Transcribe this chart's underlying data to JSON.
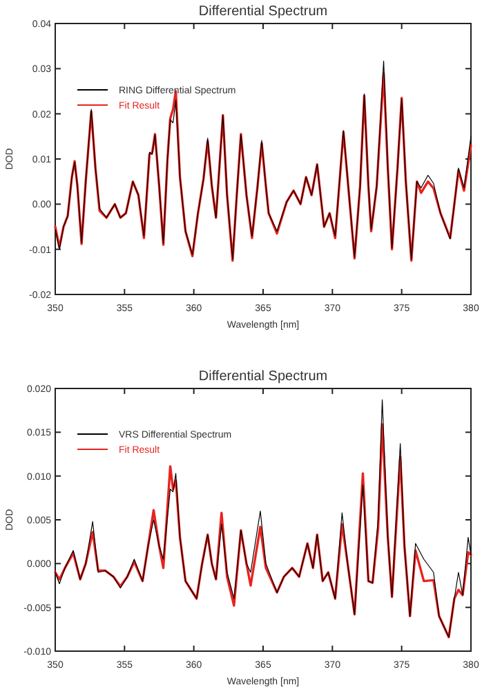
{
  "chart_data": [
    {
      "type": "line",
      "title": "Differential Spectrum",
      "xlabel": "Wavelength [nm]",
      "ylabel": "DOD",
      "xlim": [
        350,
        380
      ],
      "xticks": [
        350,
        355,
        360,
        365,
        370,
        375,
        380
      ],
      "ylim": [
        -0.02,
        0.04
      ],
      "yticks": [
        {
          "value": -0.02,
          "label": "-0.02"
        },
        {
          "value": -0.01,
          "label": "-0.01"
        },
        {
          "value": 0,
          "label": "0.00"
        },
        {
          "value": 0.01,
          "label": "0.01"
        },
        {
          "value": 0.02,
          "label": "0.02"
        },
        {
          "value": 0.03,
          "label": "0.03"
        },
        {
          "value": 0.04,
          "label": "0.04"
        }
      ],
      "grid": false,
      "legend": "top left",
      "marker": "none",
      "line_style": "solid",
      "x": [
        350.0,
        350.3,
        350.6,
        350.9,
        351.2,
        351.4,
        351.6,
        351.9,
        352.2,
        352.6,
        352.9,
        353.2,
        353.7,
        354.3,
        354.7,
        355.1,
        355.6,
        356.0,
        356.4,
        356.8,
        357.0,
        357.2,
        357.5,
        357.8,
        358.1,
        358.3,
        358.5,
        358.7,
        359.0,
        359.4,
        359.9,
        360.3,
        360.7,
        361.0,
        361.3,
        361.6,
        362.1,
        362.4,
        362.8,
        363.1,
        363.4,
        363.8,
        364.2,
        364.6,
        364.9,
        365.2,
        365.4,
        366.0,
        366.7,
        367.2,
        367.7,
        368.1,
        368.5,
        368.9,
        369.4,
        369.8,
        370.2,
        370.8,
        371.2,
        371.6,
        372.0,
        372.3,
        372.6,
        372.8,
        373.2,
        373.7,
        374.0,
        374.3,
        374.7,
        375.0,
        375.3,
        375.7,
        376.1,
        376.4,
        376.9,
        377.3,
        377.8,
        378.5,
        378.8,
        379.1,
        379.5,
        380.0
      ],
      "series": [
        {
          "name": "RING Differential Spectrum",
          "color": "#000000",
          "values": [
            -0.0056,
            -0.01,
            -0.005,
            -0.0026,
            0.006,
            0.0093,
            0.004,
            -0.0085,
            0.005,
            0.021,
            0.008,
            -0.001,
            -0.003,
            0,
            -0.003,
            -0.002,
            0.005,
            0.002,
            -0.0071,
            0.0115,
            0.011,
            0.0154,
            0.004,
            -0.0087,
            0.01,
            0.0187,
            0.018,
            0.023,
            0.006,
            -0.006,
            -0.0112,
            -0.002,
            0.0056,
            0.0146,
            0.004,
            -0.003,
            0.0197,
            0.002,
            -0.0122,
            0.002,
            0.0154,
            0.002,
            -0.0071,
            0.004,
            0.0141,
            0.004,
            -0.002,
            -0.006,
            0.0005,
            0.003,
            0,
            0.006,
            0.002,
            0.0088,
            -0.005,
            -0.002,
            -0.007,
            0.0163,
            0.002,
            -0.0117,
            0.004,
            0.0244,
            0.004,
            -0.0056,
            0.004,
            0.0317,
            0.008,
            -0.0097,
            0.008,
            0.0233,
            0.005,
            -0.0122,
            0.005,
            0.0036,
            0.0064,
            0.0046,
            -0.002,
            -0.0077,
            0,
            0.008,
            0.0036,
            0.015
          ]
        },
        {
          "name": "Fit Result",
          "color": "#e8231f",
          "values": [
            -0.005,
            -0.0095,
            -0.005,
            -0.0026,
            0.006,
            0.0095,
            0.004,
            -0.0088,
            0.005,
            0.0205,
            0.008,
            -0.0015,
            -0.003,
            0,
            -0.003,
            -0.002,
            0.005,
            0.002,
            -0.0075,
            0.011,
            0.0115,
            0.0155,
            0.004,
            -0.009,
            0.01,
            0.019,
            0.021,
            0.025,
            0.006,
            -0.006,
            -0.0115,
            -0.002,
            0.0056,
            0.014,
            0.004,
            -0.003,
            0.0197,
            0.002,
            -0.0125,
            0.002,
            0.0155,
            0.002,
            -0.0075,
            0.004,
            0.0135,
            0.004,
            -0.002,
            -0.0065,
            0.0005,
            0.003,
            0,
            0.006,
            0.002,
            0.0088,
            -0.005,
            -0.002,
            -0.0075,
            0.016,
            0.002,
            -0.012,
            0.004,
            0.024,
            0.004,
            -0.006,
            0.004,
            0.029,
            0.008,
            -0.01,
            0.008,
            0.0235,
            0.005,
            -0.0125,
            0.005,
            0.0025,
            0.005,
            0.0035,
            -0.002,
            -0.0075,
            0,
            0.0075,
            0.003,
            0.013
          ]
        }
      ]
    },
    {
      "type": "line",
      "title": "Differential Spectrum",
      "xlabel": "Wavelength [nm]",
      "ylabel": "DOD",
      "xlim": [
        350,
        380
      ],
      "xticks": [
        350,
        355,
        360,
        365,
        370,
        375,
        380
      ],
      "ylim": [
        -0.01,
        0.02
      ],
      "yticks": [
        {
          "value": -0.01,
          "label": "-0.010"
        },
        {
          "value": -0.005,
          "label": "-0.005"
        },
        {
          "value": 0,
          "label": "0.000"
        },
        {
          "value": 0.005,
          "label": "0.005"
        },
        {
          "value": 0.01,
          "label": "0.010"
        },
        {
          "value": 0.015,
          "label": "0.015"
        },
        {
          "value": 0.02,
          "label": "0.020"
        }
      ],
      "grid": false,
      "legend": "top left",
      "marker": "none",
      "line_style": "solid",
      "x": [
        350.0,
        350.3,
        350.7,
        351.3,
        351.8,
        352.2,
        352.7,
        353.1,
        353.6,
        354.2,
        354.7,
        355.2,
        355.7,
        356.3,
        356.7,
        357.1,
        357.5,
        357.8,
        358.3,
        358.5,
        358.7,
        359.0,
        359.4,
        360.2,
        360.6,
        361.0,
        361.3,
        361.6,
        362.0,
        362.4,
        362.9,
        363.4,
        363.8,
        364.1,
        364.8,
        365.2,
        366.0,
        366.5,
        367.1,
        367.6,
        368.2,
        368.6,
        368.9,
        369.3,
        369.7,
        370.2,
        370.7,
        371.1,
        371.6,
        372.2,
        372.6,
        372.9,
        373.3,
        373.6,
        374.0,
        374.3,
        374.9,
        375.2,
        375.6,
        376.0,
        376.6,
        377.3,
        377.7,
        378.4,
        378.8,
        379.1,
        379.4,
        379.8,
        380.0
      ],
      "series": [
        {
          "name": "VRS Differential Spectrum",
          "color": "#000000",
          "values": [
            -0.001,
            -0.0023,
            -0.0005,
            0.0015,
            -0.0018,
            0,
            0.0048,
            -0.001,
            -0.0008,
            -0.0015,
            -0.0028,
            -0.0015,
            0.0005,
            -0.002,
            0.002,
            0.005,
            0.002,
            0.0005,
            0.0085,
            0.0082,
            0.0103,
            0.003,
            -0.002,
            -0.004,
            0,
            0.0033,
            0,
            -0.0018,
            0.0045,
            -0.001,
            -0.004,
            0.0038,
            0,
            -0.001,
            0.006,
            0,
            -0.0033,
            -0.0015,
            -0.0005,
            -0.0015,
            0.0023,
            -0.0005,
            0.0033,
            -0.002,
            -0.001,
            -0.004,
            0.0058,
            0,
            -0.0058,
            0.009,
            -0.002,
            -0.0022,
            0.005,
            0.0187,
            0.003,
            -0.0038,
            0.0137,
            0.002,
            -0.006,
            0.0023,
            0.0005,
            -0.001,
            -0.006,
            -0.0084,
            -0.004,
            -0.001,
            -0.0036,
            0.003,
            0.001
          ]
        },
        {
          "name": "Fit Result",
          "color": "#e8231f",
          "values": [
            -0.001,
            -0.0018,
            -0.0005,
            0.0012,
            -0.0018,
            0,
            0.0036,
            -0.0008,
            -0.0008,
            -0.0015,
            -0.0026,
            -0.0015,
            0.0002,
            -0.002,
            0.002,
            0.0061,
            0.002,
            -0.0005,
            0.0111,
            0.0085,
            0.0095,
            0.003,
            -0.002,
            -0.004,
            0,
            0.0033,
            0,
            -0.0018,
            0.0058,
            -0.0015,
            -0.0048,
            0.0038,
            0,
            -0.0025,
            0.0042,
            -0.0005,
            -0.0033,
            -0.0015,
            -0.0005,
            -0.0015,
            0.0023,
            -0.0005,
            0.0033,
            -0.002,
            -0.001,
            -0.004,
            0.0045,
            0,
            -0.0058,
            0.0103,
            -0.002,
            -0.0022,
            0.004,
            0.0159,
            0.003,
            -0.0038,
            0.0122,
            0.002,
            -0.006,
            0.0015,
            -0.002,
            -0.0019,
            -0.006,
            -0.0084,
            -0.004,
            -0.003,
            -0.0036,
            0.0013,
            0.001
          ]
        }
      ]
    }
  ]
}
